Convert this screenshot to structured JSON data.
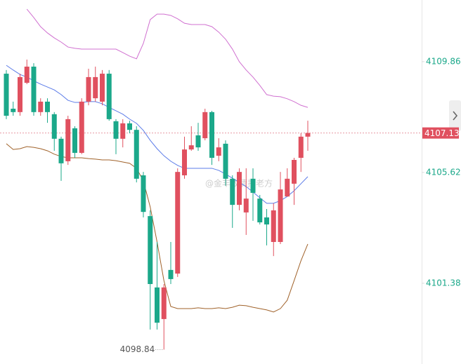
{
  "chart_data": {
    "type": "candlestick",
    "up_color": "#e0505f",
    "down_color": "#1ba88a",
    "open": [
      4109.4,
      4108.06,
      4107.93,
      4109.05,
      4109.67,
      4107.93,
      4108.33,
      4107.85,
      4106.91,
      4106.05,
      4107.31,
      4106.37,
      4108.33,
      4108.46,
      4108.33,
      4109.4,
      4107.58,
      4106.91,
      4107.5,
      4107.25,
      4105.51,
      4103.95,
      4101.22,
      4100.01,
      4101.89,
      4101.75,
      4105.51,
      4106.5,
      4107.04,
      4106.93,
      4107.93,
      4106.26,
      4106.72,
      4105.38,
      4104.38,
      4104.09,
      4105.38,
      4104.62,
      4103.9,
      4102.96,
      4102.96,
      4104.7,
      4105.19,
      4106.18,
      4106.99
    ],
    "high": [
      4109.54,
      4108.33,
      4109.4,
      4109.94,
      4109.8,
      4108.46,
      4108.46,
      4107.93,
      4106.99,
      4107.79,
      4107.39,
      4108.46,
      4109.59,
      4109.67,
      4109.54,
      4109.54,
      4107.66,
      4107.66,
      4107.6,
      4107.39,
      4105.64,
      4104.17,
      4102.96,
      4101.35,
      4102.96,
      4105.78,
      4106.99,
      4107.39,
      4107.52,
      4108.06,
      4107.98,
      4106.93,
      4106.85,
      4105.51,
      4105.78,
      4105.78,
      4105.78,
      4104.76,
      4104.22,
      4104.44,
      4105.64,
      4105.78,
      4106.18,
      4107.12,
      4107.6
    ],
    "low": [
      4107.66,
      4107.79,
      4107.79,
      4109.0,
      4107.79,
      4107.79,
      4107.52,
      4106.45,
      4105.3,
      4105.91,
      4106.18,
      4106.32,
      4108.19,
      4108.33,
      4108.19,
      4107.6,
      4106.32,
      4106.58,
      4107.12,
      4105.24,
      4103.9,
      4099.61,
      4099.61,
      4098.84,
      4101.35,
      4101.62,
      4105.38,
      4106.45,
      4106.45,
      4106.85,
      4105.91,
      4106.05,
      4105.11,
      4103.5,
      4104.17,
      4103.23,
      4103.77,
      4103.63,
      4102.83,
      4102.42,
      4102.88,
      4104.7,
      4104.38,
      4105.64,
      4106.45
    ],
    "close": [
      4107.79,
      4107.93,
      4109.27,
      4109.67,
      4107.93,
      4108.33,
      4107.93,
      4106.91,
      4105.97,
      4107.66,
      4106.37,
      4108.33,
      4109.27,
      4109.27,
      4109.4,
      4107.66,
      4106.91,
      4107.5,
      4107.25,
      4105.38,
      4104.11,
      4101.35,
      4099.87,
      4101.22,
      4101.54,
      4105.64,
      4106.5,
      4106.66,
      4106.58,
      4107.93,
      4106.18,
      4106.58,
      4105.38,
      4104.38,
      4105.64,
      4104.62,
      4104.84,
      4103.71,
      4103.63,
      4104.17,
      4104.97,
      4105.38,
      4106.1,
      4106.99,
      4107.13
    ],
    "bands": [
      {
        "color": "#d070d0",
        "values": [
          null,
          null,
          null,
          4111.87,
          4111.55,
          4111.2,
          4110.96,
          4110.77,
          4110.61,
          4110.42,
          4110.37,
          4110.34,
          4110.34,
          4110.34,
          4110.34,
          4110.34,
          4110.34,
          4110.21,
          4110.07,
          4109.97,
          4110.56,
          4111.47,
          4111.68,
          4111.68,
          4111.63,
          4111.5,
          4111.33,
          4111.28,
          4111.28,
          4111.28,
          4111.2,
          4110.99,
          4110.72,
          4110.34,
          4109.86,
          4109.54,
          4109.27,
          4108.95,
          4108.6,
          4108.54,
          4108.52,
          4108.44,
          4108.33,
          4108.19,
          4108.11
        ]
      },
      {
        "color": "#5b7be8",
        "values": [
          4109.72,
          4109.54,
          4109.37,
          4109.27,
          4109.13,
          4109.0,
          4108.89,
          4108.78,
          4108.6,
          4108.38,
          4108.3,
          4108.3,
          4108.33,
          4108.33,
          4108.25,
          4108.11,
          4107.98,
          4107.85,
          4107.66,
          4107.5,
          4107.23,
          4106.85,
          4106.53,
          4106.26,
          4106.05,
          4105.89,
          4105.78,
          4105.78,
          4105.78,
          4105.78,
          4105.78,
          4105.7,
          4105.56,
          4105.4,
          4105.24,
          4105.08,
          4104.87,
          4104.65,
          4104.44,
          4104.44,
          4104.54,
          4104.7,
          4104.92,
          4105.19,
          4105.46
        ]
      },
      {
        "color": "#a0622a",
        "values": [
          4106.72,
          4106.5,
          4106.53,
          4106.61,
          4106.58,
          4106.53,
          4106.45,
          4106.32,
          4106.23,
          4106.18,
          4106.18,
          4106.18,
          4106.15,
          4106.13,
          4106.1,
          4106.1,
          4106.07,
          4106.02,
          4105.97,
          4105.78,
          4105.3,
          4104.3,
          4102.96,
          4101.48,
          4100.49,
          4100.41,
          4100.41,
          4100.41,
          4100.44,
          4100.41,
          4100.41,
          4100.44,
          4100.41,
          4100.46,
          4100.54,
          4100.52,
          4100.46,
          4100.41,
          4100.36,
          4100.28,
          4100.41,
          4100.73,
          4101.48,
          4102.24,
          4102.88
        ]
      }
    ],
    "ylim": [
      4098.29,
      4112.22
    ],
    "yticks": [
      4101.38,
      4105.62,
      4109.86
    ],
    "last_price": 4107.13,
    "low_label": 4098.84,
    "watermark": "@金丰收情报老方"
  }
}
